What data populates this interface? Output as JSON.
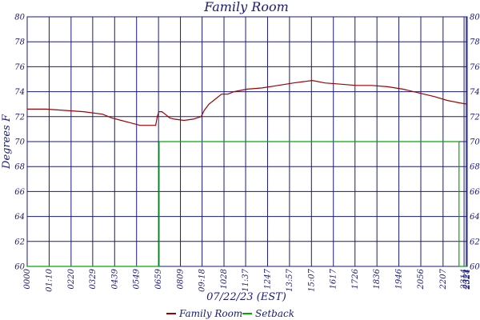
{
  "chart_data": {
    "type": "line",
    "title": "Family Room",
    "xlabel": "07/22/23 (EST)",
    "ylabel": "Degrees F",
    "ylim": [
      60,
      80
    ],
    "y_ticks": [
      60,
      62,
      64,
      66,
      68,
      70,
      72,
      74,
      76,
      78,
      80
    ],
    "x_tick_labels": [
      "0000",
      "01:10",
      "0220",
      "0329",
      "0439",
      "0549",
      "0659",
      "0809",
      "09:18",
      "1028",
      "11:37",
      "1247",
      "13:57",
      "15:07",
      "1617",
      "1726",
      "1836",
      "1946",
      "2056",
      "2207",
      "2314",
      "2321",
      "2324"
    ],
    "x_tick_minutes": [
      0,
      70,
      140,
      209,
      279,
      349,
      419,
      489,
      558,
      628,
      697,
      767,
      837,
      907,
      977,
      1046,
      1116,
      1186,
      1256,
      1327,
      1394,
      1401,
      1404
    ],
    "xlim_minutes": [
      0,
      1404
    ],
    "grid": true,
    "legend_position": "bottom",
    "colors": {
      "grid": "#1a1a7a",
      "text": "#1a1a7a"
    },
    "series": [
      {
        "name": "Family Room",
        "color": "#a00000",
        "x_minutes": [
          0,
          60,
          120,
          180,
          240,
          270,
          300,
          330,
          360,
          390,
          410,
          415,
          420,
          430,
          440,
          455,
          470,
          500,
          530,
          555,
          565,
          580,
          600,
          620,
          640,
          660,
          700,
          750,
          800,
          850,
          880,
          910,
          950,
          1000,
          1050,
          1100,
          1150,
          1200,
          1250,
          1300,
          1340,
          1380,
          1404
        ],
        "values": [
          72.6,
          72.6,
          72.5,
          72.4,
          72.2,
          71.9,
          71.7,
          71.5,
          71.3,
          71.3,
          71.3,
          72.0,
          72.4,
          72.4,
          72.2,
          71.9,
          71.8,
          71.7,
          71.8,
          72.0,
          72.5,
          73.0,
          73.4,
          73.8,
          73.8,
          74.0,
          74.2,
          74.3,
          74.5,
          74.7,
          74.8,
          74.9,
          74.7,
          74.6,
          74.5,
          74.5,
          74.4,
          74.2,
          73.9,
          73.6,
          73.3,
          73.1,
          73.0
        ]
      },
      {
        "name": "Setback",
        "color": "#00aa00",
        "x_minutes": [
          0,
          421,
          421,
          1378,
          1378,
          1404
        ],
        "values": [
          60,
          60,
          70,
          70,
          60,
          60
        ]
      }
    ]
  }
}
